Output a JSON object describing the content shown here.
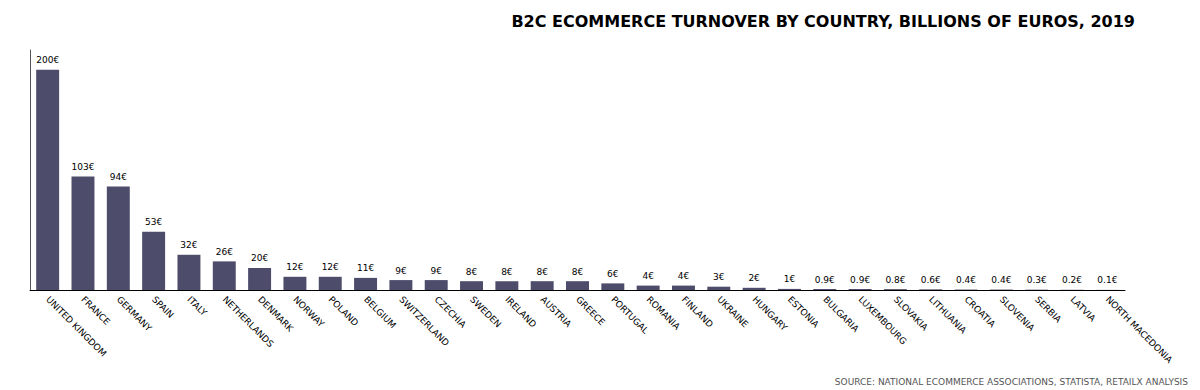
{
  "chart_data": {
    "type": "bar",
    "title": "B2C ECOMMERCE TURNOVER BY COUNTRY, BILLIONS OF EUROS, 2019",
    "annotations": [
      "SOURCE: NATIONAL ECOMMERCE ASSOCIATIONS, STATISTA, RETAILX ANALYSIS"
    ],
    "categories": [
      "UNITED KINGDOM",
      "FRANCE",
      "GERMANY",
      "SPAIN",
      "ITALY",
      "NETHERLANDS",
      "DENMARK",
      "NORWAY",
      "POLAND",
      "BELGIUM",
      "SWITZERLAND",
      "CZECHIA",
      "SWEDEN",
      "IRELAND",
      "AUSTRIA",
      "GREECE",
      "PORTUGAL",
      "ROMANIA",
      "FINLAND",
      "UKRAINE",
      "HUNGARY",
      "ESTONIA",
      "BULGARIA",
      "LUXEMBOURG",
      "SLOVAKIA",
      "LITHUANIA",
      "CROATIA",
      "SLOVENIA",
      "SERBIA",
      "LATVIA",
      "NORTH MACEDONIA"
    ],
    "values": [
      200,
      103,
      94,
      53,
      32,
      26,
      20,
      12,
      12,
      11,
      9,
      9,
      8,
      8,
      8,
      8,
      6,
      4,
      4,
      3,
      2,
      1,
      0.9,
      0.9,
      0.8,
      0.6,
      0.4,
      0.4,
      0.3,
      0.2,
      0.1
    ],
    "value_labels": [
      "200€",
      "103€",
      "94€",
      "53€",
      "32€",
      "26€",
      "20€",
      "12€",
      "12€",
      "11€",
      "9€",
      "9€",
      "8€",
      "8€",
      "8€",
      "8€",
      "6€",
      "4€",
      "4€",
      "3€",
      "2€",
      "1€",
      "0.9€",
      "0.9€",
      "0.8€",
      "0.6€",
      "0.4€",
      "0.4€",
      "0.3€",
      "0.2€",
      "0.1€"
    ],
    "color": "#4d4d6b",
    "ylim": [
      0,
      218
    ],
    "grid": false,
    "data_labels": true,
    "tick_labels": "x"
  }
}
